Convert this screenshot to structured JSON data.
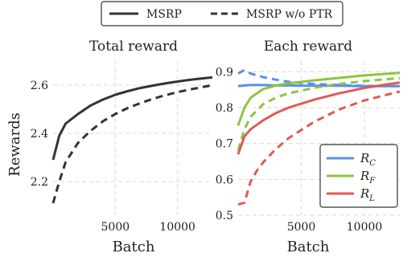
{
  "legend_top": {
    "entries": [
      {
        "label": "MSRP",
        "style": "solid",
        "color": "#333333"
      },
      {
        "label": "MSRP w/o PTR",
        "style": "dashed",
        "color": "#333333"
      }
    ]
  },
  "chart_data": [
    {
      "type": "line",
      "title": "Total reward",
      "xlabel": "Batch",
      "ylabel": "Rewards",
      "xlim": [
        0,
        12800
      ],
      "ylim": [
        2.06,
        2.7
      ],
      "xticks": [
        5000,
        10000
      ],
      "yticks": [
        2.2,
        2.4,
        2.6
      ],
      "ytick_labels": [
        "2.2",
        "2.4",
        "2.6"
      ],
      "xtick_labels": [
        "5000",
        "10000"
      ],
      "grid": true,
      "series": [
        {
          "name": "MSRP",
          "style": "solid",
          "color": "#333333",
          "x": [
            0,
            500,
            1000,
            2000,
            3000,
            4000,
            5000,
            6000,
            7000,
            8000,
            9000,
            10000,
            11000,
            12000,
            12800
          ],
          "y": [
            2.29,
            2.39,
            2.44,
            2.48,
            2.515,
            2.54,
            2.56,
            2.575,
            2.588,
            2.598,
            2.607,
            2.615,
            2.622,
            2.628,
            2.632
          ]
        },
        {
          "name": "MSRP w/o PTR",
          "style": "dashed",
          "color": "#333333",
          "x": [
            0,
            500,
            1000,
            2000,
            3000,
            4000,
            5000,
            6000,
            7000,
            8000,
            9000,
            10000,
            11000,
            12000,
            12800
          ],
          "y": [
            2.11,
            2.2,
            2.28,
            2.36,
            2.41,
            2.45,
            2.48,
            2.505,
            2.525,
            2.543,
            2.558,
            2.571,
            2.582,
            2.592,
            2.6
          ]
        }
      ]
    },
    {
      "type": "line",
      "title": "Each reward",
      "xlabel": "Batch",
      "ylabel": "",
      "xlim": [
        0,
        12800
      ],
      "ylim": [
        0.5,
        0.93
      ],
      "xticks": [
        5000,
        10000
      ],
      "yticks": [
        0.5,
        0.6,
        0.7,
        0.8,
        0.9
      ],
      "ytick_labels": [
        "0.5",
        "0.6",
        "0.7",
        "0.8",
        "0.9"
      ],
      "xtick_labels": [
        "5000",
        "10000"
      ],
      "grid": true,
      "legend": {
        "placement": "lower-right",
        "entries": [
          {
            "sym": "R",
            "sub": "C",
            "color": "#5b8fe8"
          },
          {
            "sym": "R",
            "sub": "F",
            "color": "#8cc63f"
          },
          {
            "sym": "R",
            "sub": "L",
            "color": "#e05a55"
          }
        ]
      },
      "series": [
        {
          "name": "R_C MSRP",
          "style": "solid",
          "color": "#5b8fe8",
          "x": [
            0,
            500,
            1000,
            2000,
            3000,
            4000,
            6000,
            8000,
            10000,
            12000,
            12800
          ],
          "y": [
            0.86,
            0.862,
            0.863,
            0.863,
            0.862,
            0.862,
            0.861,
            0.861,
            0.86,
            0.86,
            0.86
          ]
        },
        {
          "name": "R_C MSRP w/o PTR",
          "style": "dashed",
          "color": "#5b8fe8",
          "x": [
            0,
            500,
            1000,
            2000,
            3000,
            4000,
            6000,
            8000,
            10000,
            12000,
            12800
          ],
          "y": [
            0.895,
            0.905,
            0.895,
            0.885,
            0.878,
            0.872,
            0.866,
            0.863,
            0.861,
            0.86,
            0.86
          ]
        },
        {
          "name": "R_F MSRP",
          "style": "solid",
          "color": "#8cc63f",
          "x": [
            0,
            500,
            1000,
            2000,
            3000,
            4000,
            6000,
            8000,
            10000,
            12000,
            12800
          ],
          "y": [
            0.75,
            0.8,
            0.828,
            0.852,
            0.862,
            0.868,
            0.876,
            0.883,
            0.89,
            0.895,
            0.897
          ]
        },
        {
          "name": "R_F MSRP w/o PTR",
          "style": "dashed",
          "color": "#8cc63f",
          "x": [
            0,
            500,
            1000,
            2000,
            3000,
            4000,
            6000,
            8000,
            10000,
            12000,
            12800
          ],
          "y": [
            0.68,
            0.74,
            0.775,
            0.81,
            0.828,
            0.84,
            0.855,
            0.866,
            0.874,
            0.88,
            0.882
          ]
        },
        {
          "name": "R_L MSRP",
          "style": "solid",
          "color": "#e05a55",
          "x": [
            0,
            500,
            1000,
            2000,
            3000,
            4000,
            6000,
            8000,
            10000,
            12000,
            12800
          ],
          "y": [
            0.67,
            0.72,
            0.74,
            0.765,
            0.785,
            0.8,
            0.822,
            0.84,
            0.855,
            0.866,
            0.87
          ]
        },
        {
          "name": "R_L MSRP w/o PTR",
          "style": "dashed",
          "color": "#e05a55",
          "x": [
            0,
            500,
            1000,
            1500,
            2000,
            3000,
            4000,
            6000,
            8000,
            10000,
            12000,
            12800
          ],
          "y": [
            0.53,
            0.535,
            0.595,
            0.625,
            0.648,
            0.685,
            0.715,
            0.76,
            0.795,
            0.82,
            0.838,
            0.845
          ]
        }
      ]
    }
  ]
}
